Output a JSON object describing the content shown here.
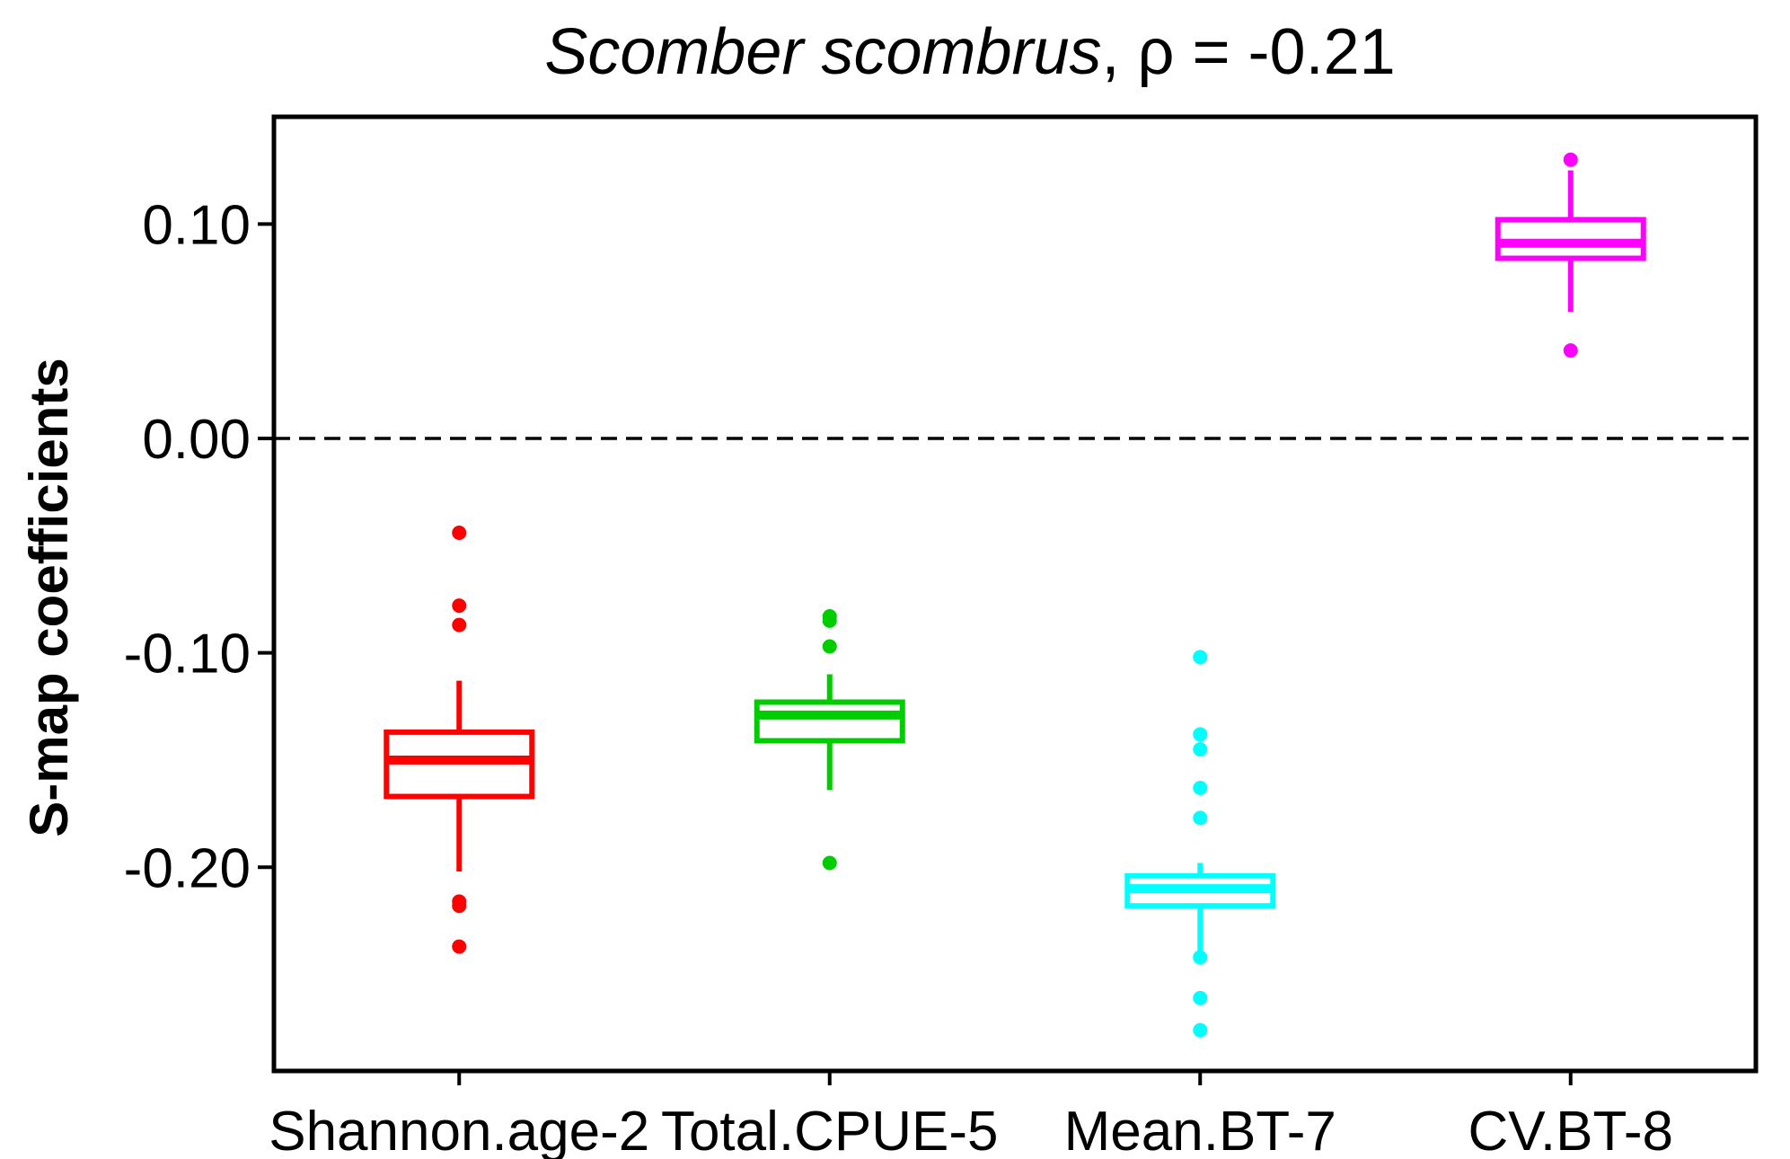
{
  "chart_data": {
    "type": "boxplot",
    "title": {
      "species": "Scomber scombrus",
      "rho_label": ", ρ = -0.21"
    },
    "ylabel": "S-map coefficients",
    "xlabel": "",
    "ylim": [
      -0.295,
      0.15
    ],
    "yticks": [
      0.1,
      0.0,
      -0.1,
      -0.2
    ],
    "ytick_labels": [
      "0.10",
      "0.00",
      "-0.10",
      "-0.20"
    ],
    "reference_line": {
      "y": 0.0,
      "style": "dashed"
    },
    "grid": false,
    "legend": "none",
    "categories": [
      "Shannon.age-2",
      "Total.CPUE-5",
      "Mean.BT-7",
      "CV.BT-8"
    ],
    "series": [
      {
        "category": "Shannon.age-2",
        "color": "#ff0000",
        "whisker_low": -0.202,
        "q1": -0.167,
        "median": -0.15,
        "q3": -0.137,
        "whisker_high": -0.113,
        "outliers": [
          -0.044,
          -0.078,
          -0.087,
          -0.216,
          -0.218,
          -0.237
        ]
      },
      {
        "category": "Total.CPUE-5",
        "color": "#00cd00",
        "whisker_low": -0.164,
        "q1": -0.141,
        "median": -0.129,
        "q3": -0.123,
        "whisker_high": -0.11,
        "outliers": [
          -0.083,
          -0.085,
          -0.097,
          -0.198
        ]
      },
      {
        "category": "Mean.BT-7",
        "color": "#00ffff",
        "whisker_low": -0.24,
        "q1": -0.218,
        "median": -0.21,
        "q3": -0.204,
        "whisker_high": -0.198,
        "outliers": [
          -0.102,
          -0.138,
          -0.145,
          -0.163,
          -0.177,
          -0.242,
          -0.261,
          -0.276
        ]
      },
      {
        "category": "CV.BT-8",
        "color": "#ff00ff",
        "whisker_low": 0.059,
        "q1": 0.084,
        "median": 0.091,
        "q3": 0.102,
        "whisker_high": 0.125,
        "outliers": [
          0.13,
          0.041
        ]
      }
    ]
  }
}
